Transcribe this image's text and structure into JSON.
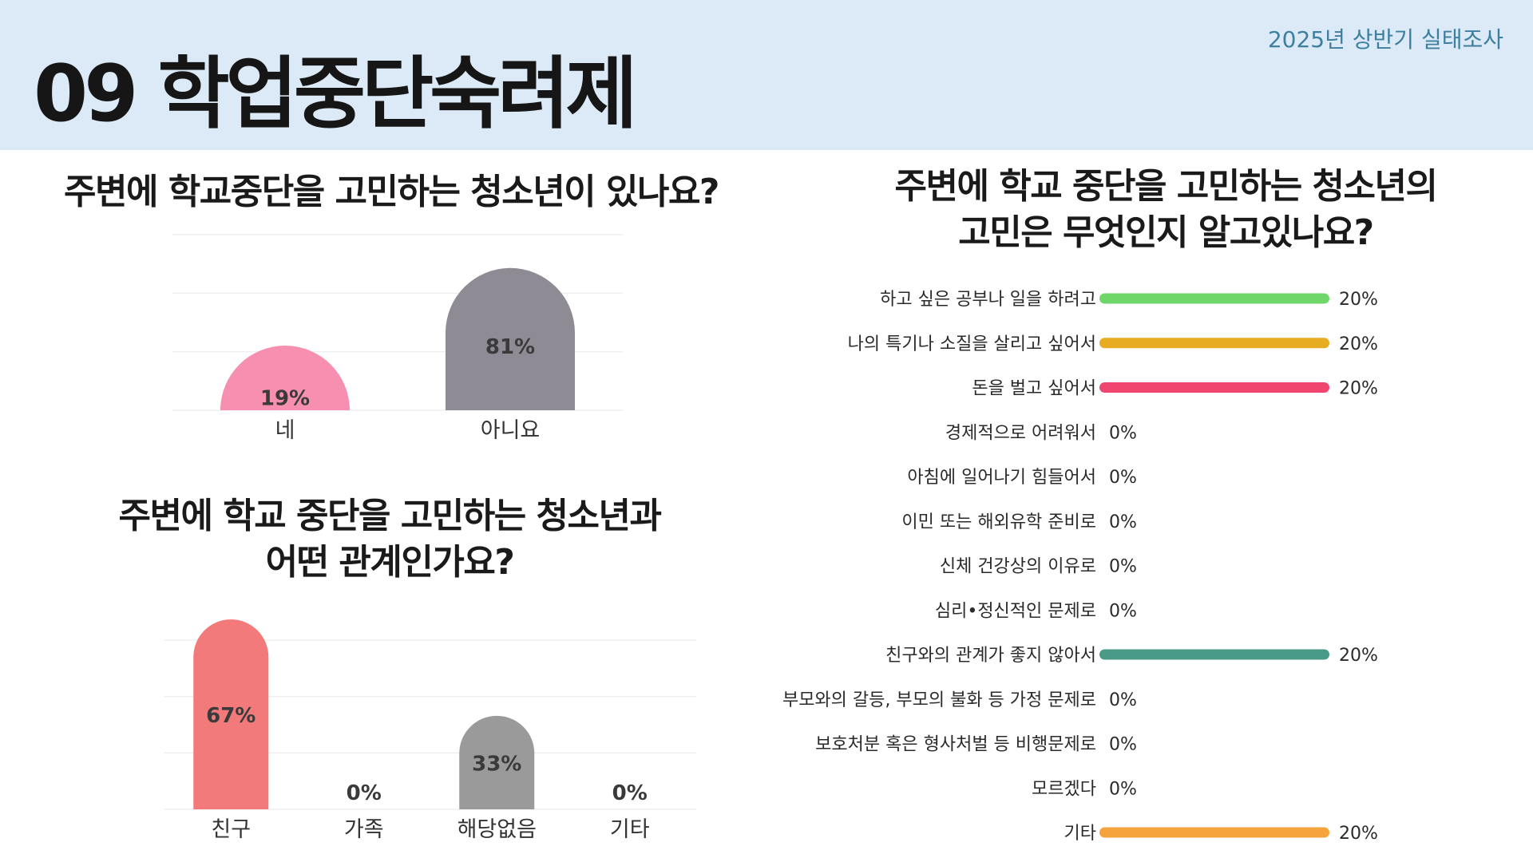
{
  "header": {
    "title": "09 학업중단숙려제",
    "survey_label": "2025년 상반기 실태조사"
  },
  "colors": {
    "header_bg": "#dbeaf6",
    "accent_text": "#3e7fa0"
  },
  "chart_data": [
    {
      "type": "bar",
      "title": "주변에 학교중단을 고민하는 청소년이 있나요?",
      "categories": [
        "네",
        "아니요"
      ],
      "values": [
        19,
        81
      ],
      "value_labels": [
        "19%",
        "81%"
      ],
      "colors": [
        "#f78fb0",
        "#8e8b94"
      ],
      "ylim": [
        0,
        100
      ],
      "grid": true
    },
    {
      "type": "bar",
      "title": "주변에 학교 중단을 고민하는 청소년과\n어떤 관계인가요?",
      "categories": [
        "친구",
        "가족",
        "해당없음",
        "기타"
      ],
      "values": [
        67,
        0,
        33,
        0
      ],
      "value_labels": [
        "67%",
        "0%",
        "33%",
        "0%"
      ],
      "colors": [
        "#f27a7a",
        "#b0b0b0",
        "#9a9a9a",
        "#b0b0b0"
      ],
      "ylim": [
        0,
        67
      ],
      "grid": true
    },
    {
      "type": "bar",
      "orientation": "horizontal",
      "title": "주변에 학교 중단을 고민하는 청소년의\n고민은 무엇인지 알고있나요?",
      "categories": [
        "하고 싶은 공부나 일을 하려고",
        "나의 특기나 소질을 살리고 싶어서",
        "돈을 벌고 싶어서",
        "경제적으로 어려워서",
        "아침에 일어나기 힘들어서",
        "이민 또는 해외유학 준비로",
        "신체 건강상의 이유로",
        "심리•정신적인 문제로",
        "친구와의 관계가 좋지 않아서",
        "부모와의 갈등, 부모의 불화 등 가정 문제로",
        "보호처분 혹은 형사처벌 등 비행문제로",
        "모르겠다",
        "기타"
      ],
      "values": [
        20,
        20,
        20,
        0,
        0,
        0,
        0,
        0,
        20,
        0,
        0,
        0,
        20
      ],
      "value_labels": [
        "20%",
        "20%",
        "20%",
        "0%",
        "0%",
        "0%",
        "0%",
        "0%",
        "20%",
        "0%",
        "0%",
        "0%",
        "20%"
      ],
      "colors": [
        "#6fd66a",
        "#e8ac22",
        "#f0456f",
        "#cccccc",
        "#cccccc",
        "#cccccc",
        "#cccccc",
        "#cccccc",
        "#4a9a88",
        "#cccccc",
        "#cccccc",
        "#cccccc",
        "#f5a33c"
      ],
      "xlim": [
        0,
        20
      ],
      "grid": false
    }
  ]
}
